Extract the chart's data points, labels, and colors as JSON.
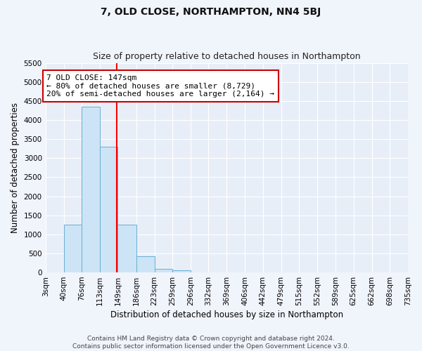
{
  "title": "7, OLD CLOSE, NORTHAMPTON, NN4 5BJ",
  "subtitle": "Size of property relative to detached houses in Northampton",
  "xlabel": "Distribution of detached houses by size in Northampton",
  "ylabel": "Number of detached properties",
  "bin_edges": [
    3,
    40,
    76,
    113,
    149,
    186,
    223,
    259,
    296,
    332,
    369,
    406,
    442,
    479,
    515,
    552,
    589,
    625,
    662,
    698,
    735
  ],
  "bar_heights": [
    0,
    1250,
    4350,
    3300,
    1250,
    430,
    100,
    50,
    0,
    0,
    0,
    0,
    0,
    0,
    0,
    0,
    0,
    0,
    0,
    0
  ],
  "bar_color": "#cce4f5",
  "bar_edge_color": "#6aaed6",
  "red_line_x": 147,
  "ylim": [
    0,
    5500
  ],
  "yticks": [
    0,
    500,
    1000,
    1500,
    2000,
    2500,
    3000,
    3500,
    4000,
    4500,
    5000,
    5500
  ],
  "annotation_title": "7 OLD CLOSE: 147sqm",
  "annotation_line1": "← 80% of detached houses are smaller (8,729)",
  "annotation_line2": "20% of semi-detached houses are larger (2,164) →",
  "annotation_box_color": "#ffffff",
  "annotation_box_edge_color": "#cc0000",
  "footnote1": "Contains HM Land Registry data © Crown copyright and database right 2024.",
  "footnote2": "Contains public sector information licensed under the Open Government Licence v3.0.",
  "fig_background_color": "#f0f4fb",
  "plot_background_color": "#e8eef8",
  "grid_color": "#ffffff",
  "title_fontsize": 10,
  "subtitle_fontsize": 9,
  "axis_label_fontsize": 8.5,
  "tick_fontsize": 7.5,
  "annotation_fontsize": 8,
  "footnote_fontsize": 6.5
}
